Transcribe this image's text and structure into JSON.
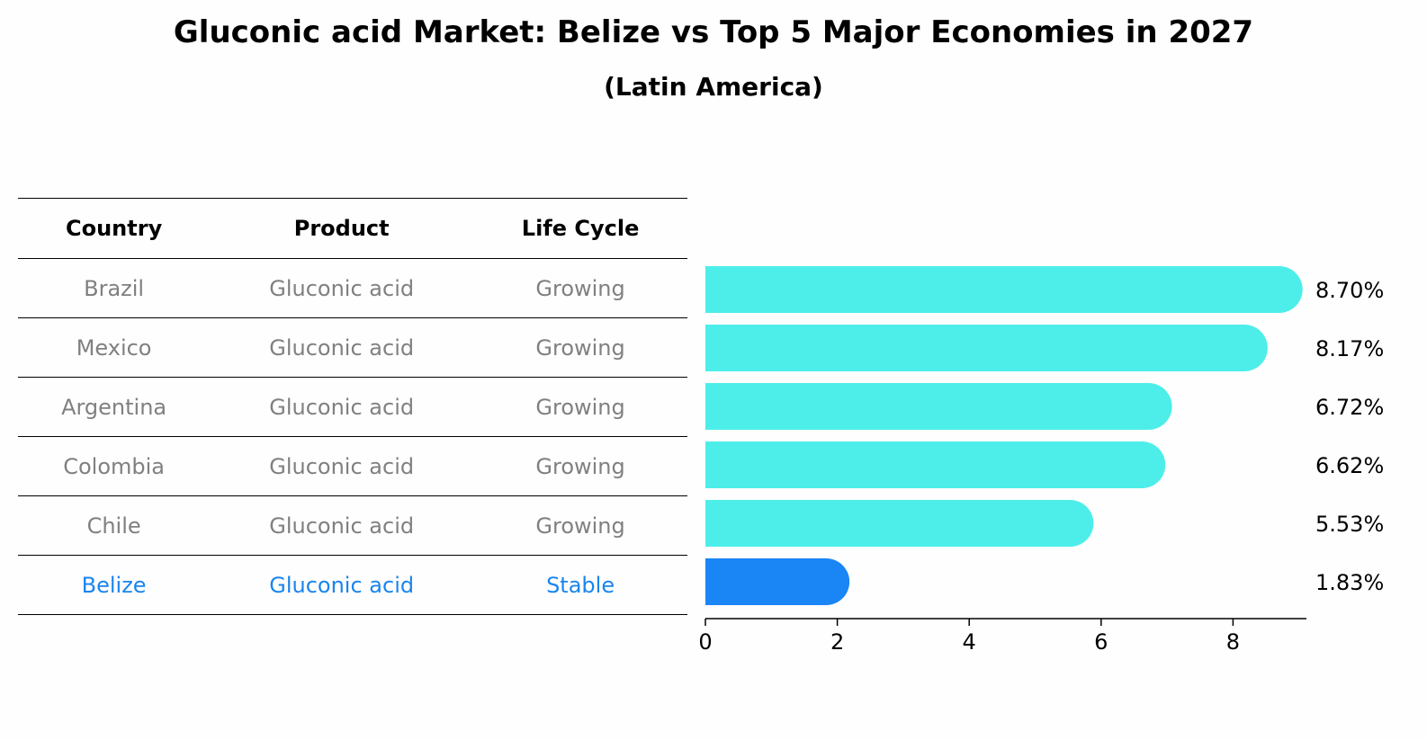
{
  "title": "Gluconic acid Market: Belize vs Top 5 Major Economies in 2027",
  "subtitle": "(Latin America)",
  "table": {
    "headers": [
      "Country",
      "Product",
      "Life Cycle"
    ],
    "rows": [
      {
        "country": "Brazil",
        "product": "Gluconic acid",
        "life_cycle": "Growing",
        "highlight": false
      },
      {
        "country": "Mexico",
        "product": "Gluconic acid",
        "life_cycle": "Growing",
        "highlight": false
      },
      {
        "country": "Argentina",
        "product": "Gluconic acid",
        "life_cycle": "Growing",
        "highlight": false
      },
      {
        "country": "Colombia",
        "product": "Gluconic acid",
        "life_cycle": "Growing",
        "highlight": false
      },
      {
        "country": "Chile",
        "product": "Gluconic acid",
        "life_cycle": "Growing",
        "highlight": false
      },
      {
        "country": "Belize",
        "product": "Gluconic acid",
        "life_cycle": "Stable",
        "highlight": true
      }
    ]
  },
  "chart_data": {
    "type": "bar",
    "orientation": "horizontal",
    "title": "Gluconic acid Market: Belize vs Top 5 Major Economies in 2027",
    "subtitle": "(Latin America)",
    "categories": [
      "Brazil",
      "Mexico",
      "Argentina",
      "Colombia",
      "Chile",
      "Belize"
    ],
    "values": [
      8.7,
      8.17,
      6.72,
      6.62,
      5.53,
      1.83
    ],
    "value_labels": [
      "8.70%",
      "8.17%",
      "6.72%",
      "6.62%",
      "5.53%",
      "1.83%"
    ],
    "xlim": [
      0,
      9.2
    ],
    "xticks": [
      0,
      2,
      4,
      6,
      8
    ],
    "grid": false,
    "colors": {
      "default": "#4deeea",
      "highlight": "#1a85f5",
      "text": "#000000",
      "muted": "#808080",
      "highlight_text": "#1a85ee"
    }
  }
}
